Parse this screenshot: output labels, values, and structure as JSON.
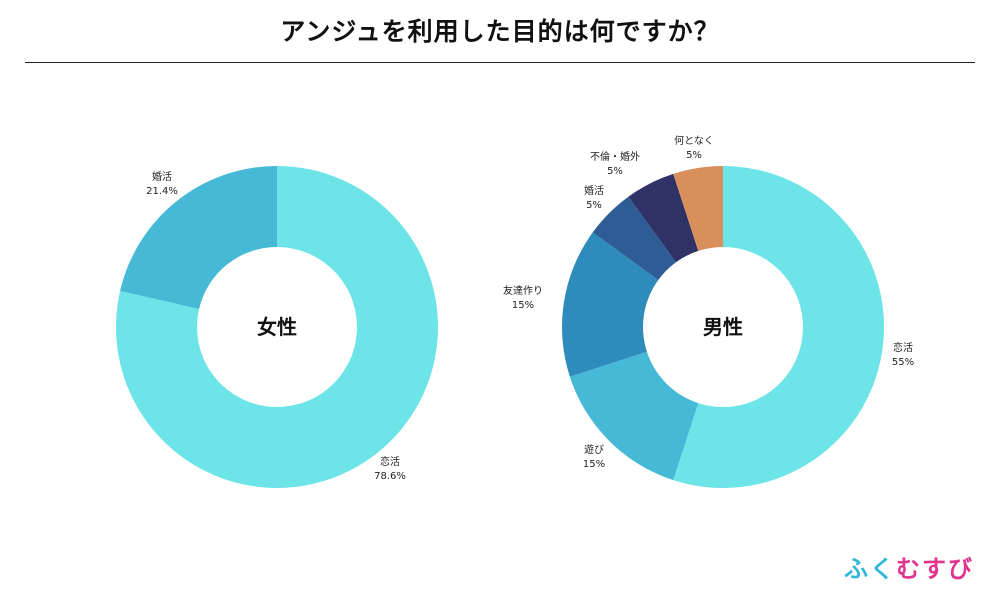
{
  "title": "アンジュを利用した目的は何ですか？",
  "brand": {
    "part1": "ふく",
    "part2": "むすび",
    "color1": "#2fb8d8",
    "color2": "#e0348d"
  },
  "chart_data": [
    {
      "type": "pie",
      "variant": "donut",
      "center_label": "女性",
      "slices": [
        {
          "label": "恋活",
          "value": 78.6,
          "value_label": "78.6%",
          "color": "#6ce4e8"
        },
        {
          "label": "婚活",
          "value": 21.4,
          "value_label": "21.4%",
          "color": "#45b9d6"
        }
      ]
    },
    {
      "type": "pie",
      "variant": "donut",
      "center_label": "男性",
      "slices": [
        {
          "label": "恋活",
          "value": 55,
          "value_label": "55%",
          "color": "#6ce4e8"
        },
        {
          "label": "遊び",
          "value": 15,
          "value_label": "15%",
          "color": "#45b9d6"
        },
        {
          "label": "友達作り",
          "value": 15,
          "value_label": "15%",
          "color": "#2e8bbb"
        },
        {
          "label": "婚活",
          "value": 5,
          "value_label": "5%",
          "color": "#2e5d96"
        },
        {
          "label": "不倫・婚外",
          "value": 5,
          "value_label": "5%",
          "color": "#2e3266"
        },
        {
          "label": "何となく",
          "value": 5,
          "value_label": "5%",
          "color": "#d98f5c"
        }
      ]
    }
  ]
}
